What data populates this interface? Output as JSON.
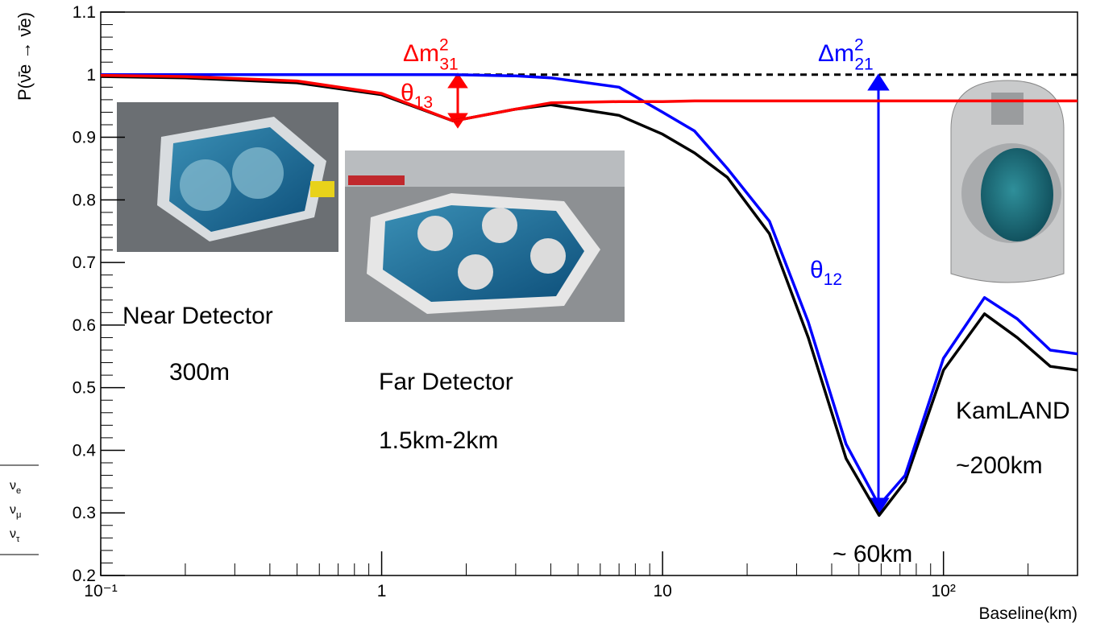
{
  "chart_data": {
    "type": "line",
    "ylabel": "P(ν̄e → ν̄e)",
    "xlabel": "Baseline(km)",
    "log_x": true,
    "x": [
      0.1,
      0.2,
      0.5,
      1,
      1.8,
      3,
      4,
      7,
      10,
      13,
      17,
      24,
      33,
      45,
      59,
      73,
      100,
      140,
      183,
      240,
      300
    ],
    "series": [
      {
        "color": "#000000",
        "values": [
          0.997,
          0.995,
          0.987,
          0.968,
          0.926,
          0.945,
          0.952,
          0.935,
          0.905,
          0.875,
          0.836,
          0.746,
          0.58,
          0.387,
          0.296,
          0.35,
          0.528,
          0.618,
          0.58,
          0.534,
          0.528
        ]
      },
      {
        "color": "#0000ff",
        "values": [
          1.0,
          1.0,
          1.0,
          1.0,
          1.0,
          0.998,
          0.995,
          0.98,
          0.94,
          0.91,
          0.85,
          0.766,
          0.605,
          0.41,
          0.312,
          0.36,
          0.547,
          0.644,
          0.61,
          0.56,
          0.554
        ]
      },
      {
        "color": "#ff0000",
        "values": [
          0.999,
          0.997,
          0.99,
          0.97,
          0.926,
          0.945,
          0.955,
          0.957,
          0.957,
          0.958,
          0.958,
          0.958,
          0.958,
          0.958,
          0.958,
          0.958,
          0.958,
          0.958,
          0.958,
          0.958,
          0.958
        ]
      }
    ],
    "hline": {
      "value": 1,
      "color": "#000000",
      "dash": true
    },
    "xlim": [
      0.1,
      300
    ],
    "ylim": [
      0.2,
      1.1
    ],
    "xticks": [
      {
        "value": 0.1,
        "label": "10⁻¹"
      },
      1,
      10,
      {
        "value": 100,
        "label": "10²"
      }
    ],
    "yticks": [
      0.2,
      0.3,
      0.4,
      0.5,
      0.6,
      0.7,
      0.8,
      0.9,
      1,
      1.1
    ],
    "annotations": [
      {
        "text": "Δm",
        "sup": "2",
        "sub": "31",
        "color": "#ff0000"
      },
      {
        "text": "θ",
        "sub": "13",
        "color": "#ff0000"
      },
      {
        "text": "Δm",
        "sup": "2",
        "sub": "21",
        "color": "#0000ff"
      },
      {
        "text": "θ",
        "sub": "12",
        "color": "#0000ff"
      },
      {
        "text": "Near Detector",
        "color": "#000000"
      },
      {
        "text": "300m",
        "color": "#000000"
      },
      {
        "text": "Far Detector",
        "color": "#000000"
      },
      {
        "text": "1.5km-2km",
        "color": "#000000"
      },
      {
        "text": "KamLAND",
        "color": "#000000"
      },
      {
        "text": "~200km",
        "color": "#000000"
      },
      {
        "text": "~ 60km",
        "color": "#000000"
      }
    ],
    "flavors": [
      {
        "text": "ν",
        "sub": "e"
      },
      {
        "text": "ν",
        "sub": "μ"
      },
      {
        "text": "ν",
        "sub": "τ"
      }
    ]
  }
}
